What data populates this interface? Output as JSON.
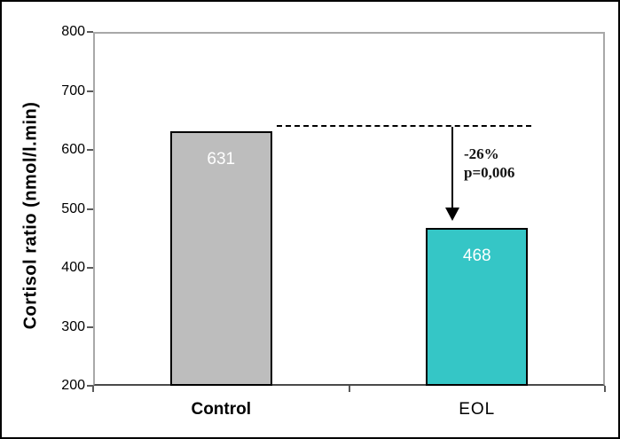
{
  "chart_data": {
    "type": "bar",
    "title": "",
    "xlabel": "",
    "ylabel": "Cortisol ratio (nmol/l.min)",
    "categories": [
      "Control",
      "EOL"
    ],
    "values": [
      631,
      468
    ],
    "bar_colors": [
      "#bdbdbd",
      "#35c6c6"
    ],
    "value_label_color": "#ffffff",
    "ylim": [
      200,
      800
    ],
    "yticks": [
      200,
      300,
      400,
      500,
      600,
      700,
      800
    ],
    "grid": false,
    "legend": false,
    "annotation": {
      "lines": [
        "-26%",
        "p=0,006"
      ],
      "arrow": "down-arrow",
      "dashed_line_from": "Control bar top",
      "dashed_line_to": "above EOL bar"
    }
  }
}
